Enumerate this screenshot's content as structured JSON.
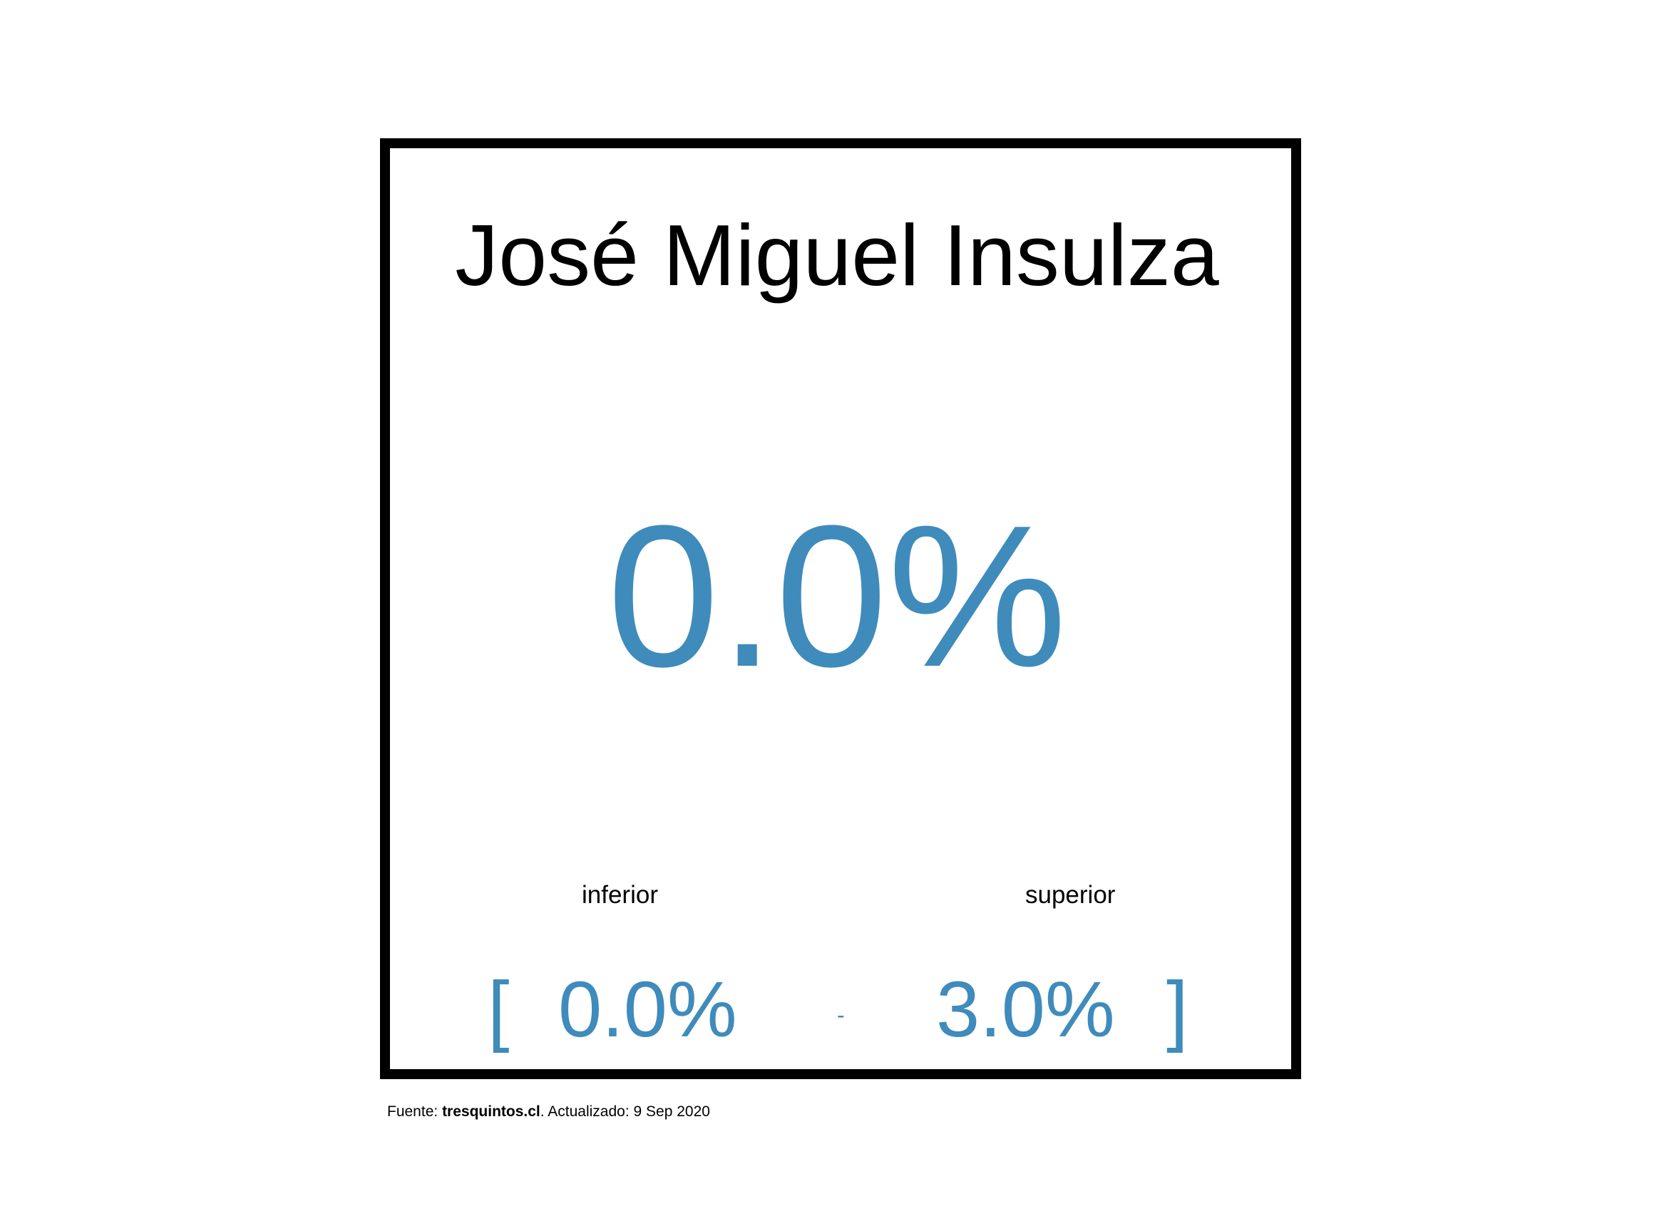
{
  "card": {
    "title": "José Miguel Insulza",
    "value": "0.0%",
    "lower_label": "inferior",
    "upper_label": "superior",
    "bracket_open": "[",
    "lower_value": "0.0%",
    "separator": "-",
    "upper_value": "3.0%",
    "bracket_close": "]"
  },
  "footer": {
    "prefix": "Fuente: ",
    "source": "tresquintos.cl",
    "suffix": ". Actualizado: 9 Sep 2020"
  },
  "colors": {
    "accent": "#3f8bbc",
    "text": "#000000",
    "border": "#000000",
    "background": "#ffffff"
  }
}
